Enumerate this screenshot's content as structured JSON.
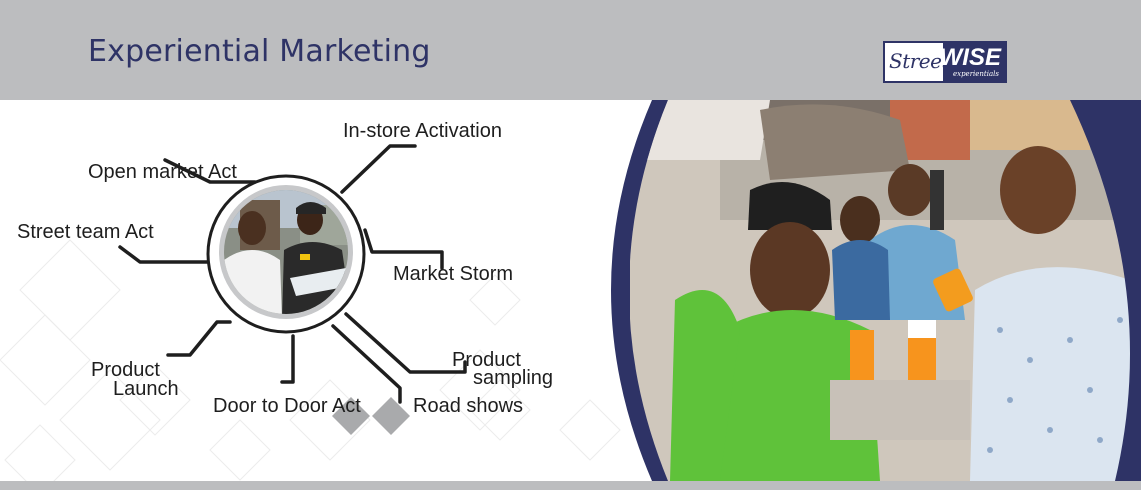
{
  "header": {
    "title": "Experiential Marketing",
    "logo": {
      "word1": "Street",
      "word2": "WISE",
      "tagline": "experientials"
    }
  },
  "activities": {
    "instore": "In-store Activation",
    "openmarket": "Open market Act",
    "streetteam": "Street team Act",
    "marketstorm": "Market Storm",
    "product_launch_1": "Product",
    "product_launch_2": "Launch",
    "door_to_door": "Door to Door Act",
    "product_sampling_1": "Product",
    "product_sampling_2": "sampling",
    "road_shows": "Road shows"
  },
  "colors": {
    "header_bg": "#bcbdbf",
    "title": "#2e3366",
    "navy": "#2e3366",
    "line": "#1e1e1e",
    "shirt_green": "#5fc23a"
  },
  "icons": {
    "center_photo": "promoters-with-clipboard-photo",
    "main_photo": "juice-sampling-event-photo"
  }
}
